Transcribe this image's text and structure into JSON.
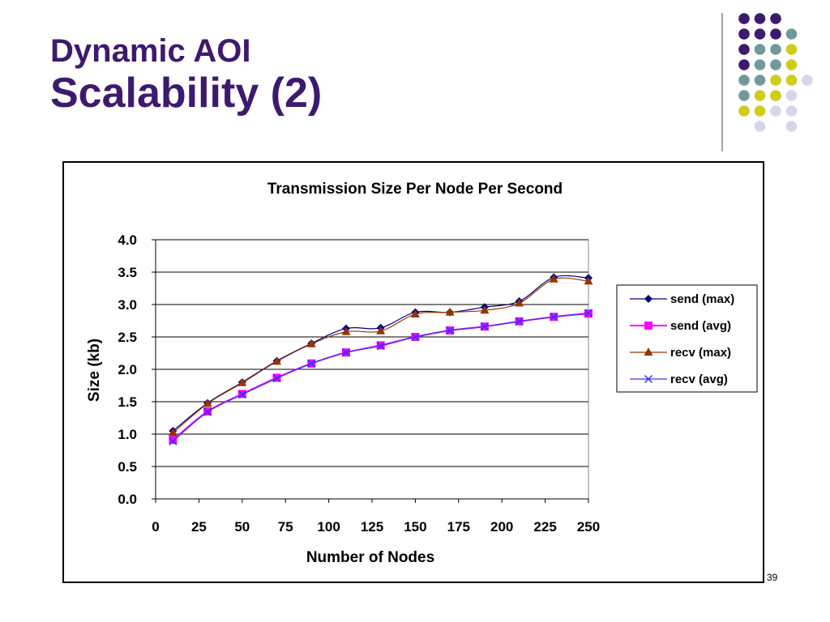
{
  "slide": {
    "title_line1": "Dynamic AOI",
    "title_line2": "Scalability (2)",
    "page_number": "39"
  },
  "theme": {
    "title_color": "#3d1a6e",
    "dot_colors": {
      "purple": "#3d1a6e",
      "teal": "#6f9a9a",
      "yellow": "#cfcc1a",
      "lavender": "#d6d6ea"
    }
  },
  "chart_data": {
    "type": "line",
    "title": "Transmission Size Per Node Per Second",
    "xlabel": "Number of Nodes",
    "ylabel": "Size (kb)",
    "xlim": [
      0,
      250
    ],
    "ylim": [
      0,
      4
    ],
    "x_ticks": [
      0,
      25,
      50,
      75,
      100,
      125,
      150,
      175,
      200,
      225,
      250
    ],
    "y_ticks": [
      "0.0",
      "0.5",
      "1.0",
      "1.5",
      "2.0",
      "2.5",
      "3.0",
      "3.5",
      "4.0"
    ],
    "grid": "horizontal",
    "legend_position": "right",
    "x": [
      10,
      30,
      50,
      70,
      90,
      110,
      130,
      150,
      170,
      190,
      210,
      230,
      250
    ],
    "series": [
      {
        "name": "send (max)",
        "color": "#000080",
        "marker": "diamond",
        "values": [
          1.05,
          1.48,
          1.8,
          2.13,
          2.4,
          2.63,
          2.64,
          2.88,
          2.88,
          2.96,
          3.05,
          3.42,
          3.41
        ]
      },
      {
        "name": "send (avg)",
        "color": "#ff00ff",
        "marker": "square",
        "values": [
          0.91,
          1.35,
          1.62,
          1.87,
          2.09,
          2.26,
          2.37,
          2.5,
          2.6,
          2.66,
          2.74,
          2.81,
          2.86
        ]
      },
      {
        "name": "recv (max)",
        "color": "#993300",
        "marker": "triangle",
        "values": [
          1.02,
          1.47,
          1.79,
          2.12,
          2.39,
          2.58,
          2.59,
          2.85,
          2.88,
          2.91,
          3.02,
          3.39,
          3.36
        ]
      },
      {
        "name": "recv (avg)",
        "color": "#3333ff",
        "marker": "x",
        "values": [
          0.89,
          1.34,
          1.61,
          1.86,
          2.09,
          2.26,
          2.36,
          2.5,
          2.6,
          2.66,
          2.74,
          2.81,
          2.87
        ]
      }
    ]
  }
}
